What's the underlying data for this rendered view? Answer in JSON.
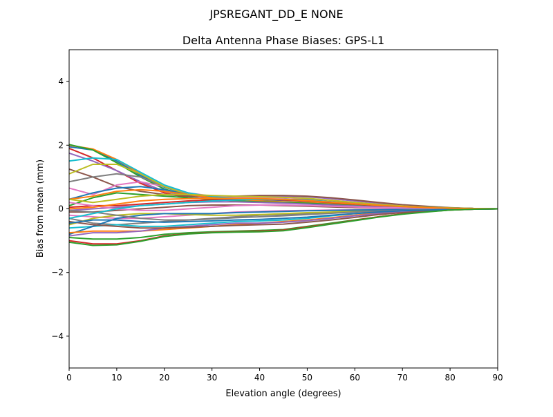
{
  "chart_data": {
    "type": "line",
    "suptitle": "JPSREGANT_DD_E  NONE",
    "title": "Delta Antenna Phase Biases: GPS-L1",
    "xlabel": "Elevation angle (degrees)",
    "ylabel": "Bias from mean (mm)",
    "xlim": [
      0,
      90
    ],
    "ylim": [
      -5,
      5
    ],
    "xticks": [
      0,
      10,
      20,
      30,
      40,
      50,
      60,
      70,
      80,
      90
    ],
    "yticks": [
      -4,
      -2,
      0,
      2,
      4
    ],
    "grid": false,
    "colors": [
      "#1f77b4",
      "#ff7f0e",
      "#2ca02c",
      "#d62728",
      "#9467bd",
      "#8c564b",
      "#e377c2",
      "#7f7f7f",
      "#bcbd22",
      "#17becf"
    ],
    "x": [
      0,
      5,
      10,
      15,
      20,
      25,
      30,
      35,
      40,
      45,
      50,
      55,
      60,
      65,
      70,
      75,
      80,
      85,
      90
    ],
    "series": [
      {
        "values": [
          1.95,
          1.85,
          1.5,
          1.05,
          0.68,
          0.45,
          0.35,
          0.3,
          0.28,
          0.27,
          0.24,
          0.2,
          0.15,
          0.1,
          0.07,
          0.04,
          0.02,
          0.01,
          0
        ]
      },
      {
        "values": [
          2.0,
          1.88,
          1.55,
          1.1,
          0.7,
          0.45,
          0.35,
          0.3,
          0.3,
          0.28,
          0.25,
          0.2,
          0.15,
          0.1,
          0.07,
          0.04,
          0.02,
          0.01,
          0
        ]
      },
      {
        "values": [
          2.02,
          1.85,
          1.45,
          1.0,
          0.62,
          0.42,
          0.34,
          0.3,
          0.3,
          0.3,
          0.28,
          0.22,
          0.17,
          0.12,
          0.08,
          0.05,
          0.03,
          0.01,
          0
        ]
      },
      {
        "values": [
          1.9,
          1.6,
          1.2,
          0.8,
          0.5,
          0.35,
          0.3,
          0.3,
          0.3,
          0.3,
          0.28,
          0.22,
          0.17,
          0.12,
          0.08,
          0.05,
          0.03,
          0.01,
          0
        ]
      },
      {
        "values": [
          1.75,
          1.5,
          1.2,
          0.85,
          0.55,
          0.4,
          0.35,
          0.35,
          0.38,
          0.4,
          0.38,
          0.32,
          0.25,
          0.18,
          0.12,
          0.07,
          0.03,
          0.01,
          0
        ]
      },
      {
        "values": [
          1.25,
          1.0,
          0.7,
          0.55,
          0.45,
          0.4,
          0.38,
          0.4,
          0.42,
          0.42,
          0.4,
          0.35,
          0.28,
          0.2,
          0.13,
          0.08,
          0.04,
          0.01,
          0
        ]
      },
      {
        "values": [
          0.65,
          0.45,
          0.75,
          0.85,
          0.7,
          0.5,
          0.4,
          0.35,
          0.35,
          0.35,
          0.32,
          0.27,
          0.2,
          0.14,
          0.09,
          0.05,
          0.03,
          0.01,
          0
        ]
      },
      {
        "values": [
          0.85,
          1.0,
          1.1,
          1.0,
          0.7,
          0.45,
          0.35,
          0.32,
          0.3,
          0.28,
          0.25,
          0.2,
          0.15,
          0.1,
          0.07,
          0.04,
          0.02,
          0.01,
          0
        ]
      },
      {
        "values": [
          1.1,
          1.4,
          1.4,
          1.1,
          0.7,
          0.45,
          0.35,
          0.3,
          0.3,
          0.3,
          0.28,
          0.22,
          0.17,
          0.12,
          0.08,
          0.05,
          0.03,
          0.01,
          0
        ]
      },
      {
        "values": [
          1.5,
          1.6,
          1.55,
          1.15,
          0.75,
          0.5,
          0.38,
          0.33,
          0.3,
          0.28,
          0.25,
          0.2,
          0.15,
          0.1,
          0.07,
          0.04,
          0.02,
          0.01,
          0
        ]
      },
      {
        "values": [
          0.3,
          0.5,
          0.65,
          0.7,
          0.6,
          0.45,
          0.35,
          0.3,
          0.3,
          0.3,
          0.28,
          0.22,
          0.17,
          0.12,
          0.08,
          0.05,
          0.03,
          0.01,
          0
        ]
      },
      {
        "values": [
          0.3,
          0.4,
          0.55,
          0.6,
          0.55,
          0.45,
          0.35,
          0.3,
          0.25,
          0.22,
          0.2,
          0.16,
          0.12,
          0.08,
          0.05,
          0.03,
          0.02,
          0.01,
          0
        ]
      },
      {
        "values": [
          0.1,
          0.35,
          0.5,
          0.45,
          0.4,
          0.35,
          0.3,
          0.25,
          0.22,
          0.2,
          0.18,
          0.14,
          0.1,
          0.07,
          0.05,
          0.03,
          0.02,
          0.01,
          0
        ]
      },
      {
        "values": [
          0.05,
          0.1,
          0.1,
          0.15,
          0.2,
          0.25,
          0.28,
          0.3,
          0.3,
          0.28,
          0.25,
          0.2,
          0.15,
          0.1,
          0.07,
          0.04,
          0.02,
          0.01,
          0
        ]
      },
      {
        "values": [
          -0.05,
          0,
          0.05,
          0.1,
          0.15,
          0.2,
          0.22,
          0.22,
          0.2,
          0.18,
          0.15,
          0.12,
          0.09,
          0.06,
          0.04,
          0.02,
          0.01,
          0.005,
          0
        ]
      },
      {
        "values": [
          -0.1,
          -0.1,
          -0.05,
          0,
          0.05,
          0.1,
          0.12,
          0.12,
          0.12,
          0.1,
          0.08,
          0.06,
          0.04,
          0.03,
          0.02,
          0.01,
          0.005,
          0,
          0
        ]
      },
      {
        "values": [
          -0.2,
          -0.25,
          -0.3,
          -0.3,
          -0.25,
          -0.2,
          -0.15,
          -0.1,
          -0.08,
          -0.06,
          -0.05,
          -0.04,
          -0.03,
          -0.02,
          -0.01,
          -0.01,
          0,
          0,
          0
        ]
      },
      {
        "values": [
          -0.3,
          -0.45,
          -0.5,
          -0.45,
          -0.4,
          -0.35,
          -0.3,
          -0.25,
          -0.2,
          -0.18,
          -0.15,
          -0.12,
          -0.09,
          -0.06,
          -0.04,
          -0.02,
          -0.01,
          0,
          0
        ]
      },
      {
        "values": [
          -0.5,
          -0.3,
          -0.2,
          -0.15,
          -0.15,
          -0.18,
          -0.2,
          -0.2,
          -0.18,
          -0.15,
          -0.12,
          -0.1,
          -0.07,
          -0.05,
          -0.03,
          -0.02,
          -0.01,
          0,
          0
        ]
      },
      {
        "values": [
          -0.6,
          -0.55,
          -0.5,
          -0.55,
          -0.55,
          -0.5,
          -0.45,
          -0.4,
          -0.38,
          -0.35,
          -0.3,
          -0.22,
          -0.15,
          -0.1,
          -0.06,
          -0.04,
          -0.02,
          -0.01,
          0
        ]
      },
      {
        "values": [
          -0.8,
          -0.55,
          -0.3,
          -0.2,
          -0.15,
          -0.15,
          -0.15,
          -0.12,
          -0.1,
          -0.08,
          -0.06,
          -0.05,
          -0.04,
          -0.03,
          -0.02,
          -0.01,
          0,
          0,
          0
        ]
      },
      {
        "values": [
          -0.75,
          -0.7,
          -0.7,
          -0.7,
          -0.65,
          -0.6,
          -0.55,
          -0.5,
          -0.45,
          -0.4,
          -0.35,
          -0.28,
          -0.2,
          -0.13,
          -0.08,
          -0.05,
          -0.02,
          -0.01,
          0
        ]
      },
      {
        "values": [
          -0.9,
          -0.95,
          -0.95,
          -0.9,
          -0.8,
          -0.75,
          -0.72,
          -0.7,
          -0.68,
          -0.65,
          -0.55,
          -0.45,
          -0.35,
          -0.25,
          -0.16,
          -0.09,
          -0.04,
          -0.01,
          0
        ]
      },
      {
        "values": [
          -1.0,
          -1.1,
          -1.1,
          -1.0,
          -0.85,
          -0.78,
          -0.74,
          -0.72,
          -0.7,
          -0.67,
          -0.57,
          -0.47,
          -0.36,
          -0.25,
          -0.16,
          -0.09,
          -0.04,
          -0.01,
          0
        ]
      },
      {
        "values": [
          -0.85,
          -0.75,
          -0.75,
          -0.7,
          -0.6,
          -0.55,
          -0.5,
          -0.45,
          -0.45,
          -0.42,
          -0.37,
          -0.3,
          -0.22,
          -0.15,
          -0.1,
          -0.06,
          -0.03,
          -0.01,
          0
        ]
      },
      {
        "values": [
          -0.4,
          -0.5,
          -0.55,
          -0.6,
          -0.6,
          -0.58,
          -0.55,
          -0.52,
          -0.5,
          -0.48,
          -0.42,
          -0.35,
          -0.27,
          -0.18,
          -0.12,
          -0.07,
          -0.03,
          -0.01,
          0
        ]
      },
      {
        "values": [
          0.2,
          0.1,
          0,
          -0.05,
          -0.05,
          0,
          0.05,
          0.1,
          0.12,
          0.12,
          0.1,
          0.08,
          0.06,
          0.04,
          0.03,
          0.02,
          0.01,
          0,
          0
        ]
      },
      {
        "values": [
          -0.05,
          -0.1,
          -0.2,
          -0.3,
          -0.35,
          -0.35,
          -0.32,
          -0.28,
          -0.25,
          -0.22,
          -0.18,
          -0.14,
          -0.1,
          -0.07,
          -0.05,
          -0.03,
          -0.01,
          0,
          0
        ]
      },
      {
        "values": [
          0.3,
          0.2,
          0.3,
          0.4,
          0.45,
          0.45,
          0.42,
          0.4,
          0.38,
          0.36,
          0.33,
          0.27,
          0.2,
          0.14,
          0.09,
          0.05,
          0.03,
          0.01,
          0
        ]
      },
      {
        "values": [
          -0.3,
          -0.15,
          0,
          0.1,
          0.15,
          0.2,
          0.25,
          0.28,
          0.3,
          0.3,
          0.27,
          0.22,
          0.16,
          0.11,
          0.07,
          0.04,
          0.02,
          0.01,
          0
        ]
      },
      {
        "values": [
          -0.45,
          -0.35,
          -0.35,
          -0.4,
          -0.42,
          -0.4,
          -0.38,
          -0.35,
          -0.33,
          -0.3,
          -0.26,
          -0.2,
          -0.15,
          -0.1,
          -0.06,
          -0.04,
          -0.02,
          -0.01,
          0
        ]
      },
      {
        "values": [
          0.0,
          0.05,
          0.15,
          0.25,
          0.3,
          0.32,
          0.33,
          0.33,
          0.32,
          0.3,
          0.26,
          0.21,
          0.16,
          0.11,
          0.07,
          0.04,
          0.02,
          0.01,
          0
        ]
      },
      {
        "values": [
          -1.05,
          -1.15,
          -1.13,
          -1.02,
          -0.87,
          -0.79,
          -0.75,
          -0.73,
          -0.72,
          -0.69,
          -0.59,
          -0.48,
          -0.37,
          -0.26,
          -0.17,
          -0.1,
          -0.04,
          -0.01,
          0
        ]
      }
    ]
  }
}
